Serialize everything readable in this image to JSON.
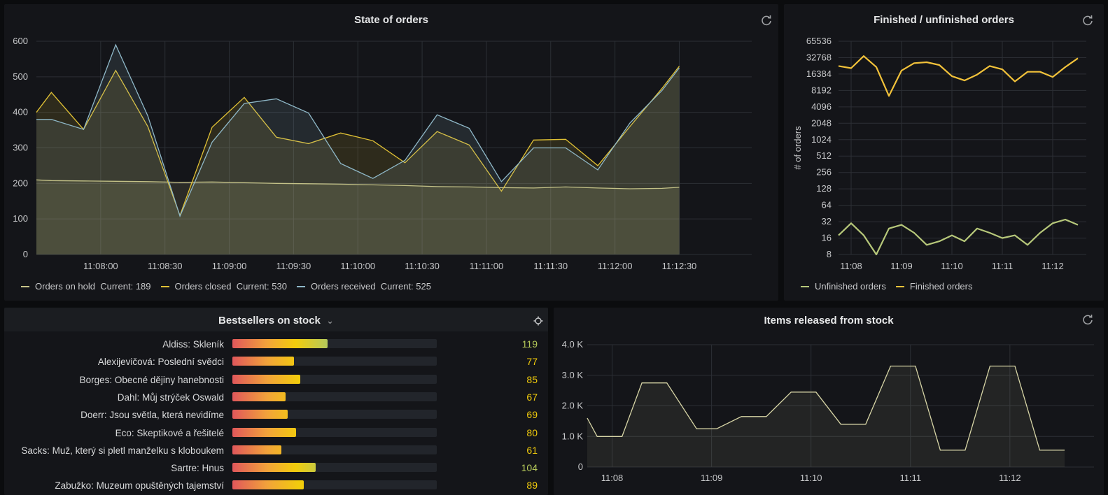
{
  "colors": {
    "on_hold": "#c9c58a",
    "closed": "#e0c135",
    "received": "#8fb8c8",
    "unfinished": "#b7c87a",
    "finished": "#f2c23a",
    "released": "#d7d5a6"
  },
  "state_panel": {
    "title": "State of orders",
    "refresh_icon": "refresh-icon",
    "legend": [
      {
        "name": "Orders on hold",
        "current_label": "Current:",
        "current": "189"
      },
      {
        "name": "Orders closed",
        "current_label": "Current:",
        "current": "530"
      },
      {
        "name": "Orders received",
        "current_label": "Current:",
        "current": "525"
      }
    ]
  },
  "finished_panel": {
    "title": "Finished / unfinished orders",
    "refresh_icon": "refresh-icon",
    "legend": [
      {
        "name": "Unfinished orders"
      },
      {
        "name": "Finished orders"
      }
    ]
  },
  "bestsellers_panel": {
    "title": "Bestsellers on stock",
    "title_caret": "⌄",
    "settings_icon": "target-icon",
    "items": [
      {
        "label": "Aldiss: Skleník",
        "value": 119
      },
      {
        "label": "Alexijevičová: Poslední svědci",
        "value": 77
      },
      {
        "label": "Borges: Obecné dějiny hanebnosti",
        "value": 85
      },
      {
        "label": "Dahl: Můj strýček Oswald",
        "value": 67
      },
      {
        "label": "Doerr: Jsou světla, která nevidíme",
        "value": 69
      },
      {
        "label": "Eco: Skeptikové a řešitelé",
        "value": 80
      },
      {
        "label": "Sacks: Muž, který si pletl manželku s kloboukem",
        "value": 61
      },
      {
        "label": "Sartre: Hnus",
        "value": 104
      },
      {
        "label": "Zabužko: Muzeum opuštěných tajemství",
        "value": 89
      }
    ],
    "bar_max": 256
  },
  "released_panel": {
    "title": "Items released from stock",
    "refresh_icon": "refresh-icon"
  },
  "chart_data": [
    {
      "id": "state",
      "type": "area",
      "title": "State of orders",
      "xlabel": "",
      "ylabel": "",
      "ylim": [
        0,
        600
      ],
      "yticks": [
        "0",
        "100",
        "200",
        "300",
        "400",
        "500",
        "600"
      ],
      "xlim": [
        0,
        325
      ],
      "xticks": [
        {
          "t": 30,
          "label": "11:08:00"
        },
        {
          "t": 60,
          "label": "11:08:30"
        },
        {
          "t": 90,
          "label": "11:09:00"
        },
        {
          "t": 120,
          "label": "11:09:30"
        },
        {
          "t": 150,
          "label": "11:10:00"
        },
        {
          "t": 180,
          "label": "11:10:30"
        },
        {
          "t": 210,
          "label": "11:11:00"
        },
        {
          "t": 240,
          "label": "11:11:30"
        },
        {
          "t": 270,
          "label": "11:12:00"
        },
        {
          "t": 300,
          "label": "11:12:30"
        }
      ],
      "x": [
        0,
        7,
        22,
        37,
        52,
        67,
        82,
        97,
        112,
        127,
        142,
        157,
        172,
        187,
        202,
        217,
        232,
        247,
        262,
        277,
        292,
        300
      ],
      "series": [
        {
          "name": "Orders on hold",
          "key": "on_hold",
          "values": [
            210,
            208,
            207,
            206,
            205,
            203,
            204,
            202,
            200,
            199,
            198,
            196,
            194,
            191,
            190,
            188,
            187,
            190,
            187,
            185,
            186,
            189
          ]
        },
        {
          "name": "Orders closed",
          "key": "closed",
          "values": [
            400,
            456,
            352,
            518,
            360,
            110,
            358,
            442,
            330,
            312,
            342,
            320,
            258,
            346,
            308,
            178,
            322,
            324,
            250,
            360,
            468,
            530
          ]
        },
        {
          "name": "Orders received",
          "key": "received",
          "values": [
            380,
            380,
            352,
            590,
            390,
            108,
            316,
            425,
            438,
            398,
            256,
            214,
            265,
            393,
            355,
            205,
            300,
            300,
            238,
            370,
            462,
            525
          ]
        }
      ]
    },
    {
      "id": "finished",
      "type": "line",
      "title": "Finished / unfinished orders",
      "ylabel": "# of orders",
      "yscale": "log2",
      "ylim": [
        8,
        65536
      ],
      "yticks": [
        "8",
        "16",
        "32",
        "64",
        "128",
        "256",
        "512",
        "1024",
        "2048",
        "4096",
        "8192",
        "16384",
        "32768",
        "65536"
      ],
      "xticks": [
        {
          "t": 1,
          "label": "11:08"
        },
        {
          "t": 5,
          "label": "11:09"
        },
        {
          "t": 9,
          "label": "11:10"
        },
        {
          "t": 13,
          "label": "11:11"
        },
        {
          "t": 17,
          "label": "11:12"
        }
      ],
      "x": [
        0,
        1,
        2,
        3,
        4,
        5,
        6,
        7,
        8,
        9,
        10,
        11,
        12,
        13,
        14,
        15,
        16,
        17,
        18,
        19
      ],
      "series": [
        {
          "name": "Unfinished orders",
          "key": "unfinished",
          "values": [
            18,
            30,
            18,
            8,
            24,
            28,
            20,
            12,
            14,
            18,
            14,
            24,
            20,
            16,
            18,
            12,
            20,
            30,
            35,
            28
          ]
        },
        {
          "name": "Finished orders",
          "key": "finished",
          "values": [
            23000,
            21000,
            35000,
            22000,
            6500,
            19000,
            26000,
            27000,
            24000,
            15000,
            12500,
            16000,
            23000,
            20000,
            12000,
            18000,
            18000,
            14500,
            22000,
            32000
          ]
        }
      ]
    },
    {
      "id": "released",
      "type": "area",
      "title": "Items released from stock",
      "ylim": [
        0,
        4000
      ],
      "yticks": [
        {
          "v": 0,
          "label": "0"
        },
        {
          "v": 1000,
          "label": "1.0 K"
        },
        {
          "v": 2000,
          "label": "2.0 K"
        },
        {
          "v": 3000,
          "label": "3.0 K"
        },
        {
          "v": 4000,
          "label": "4.0 K"
        }
      ],
      "xticks": [
        {
          "t": 1,
          "label": "11:08"
        },
        {
          "t": 5,
          "label": "11:09"
        },
        {
          "t": 9,
          "label": "11:10"
        },
        {
          "t": 13,
          "label": "11:11"
        },
        {
          "t": 17,
          "label": "11:12"
        }
      ],
      "x": [
        0,
        0.4,
        1.4,
        2.2,
        3.2,
        4.4,
        5.2,
        6.2,
        7.2,
        8.2,
        9.2,
        10.2,
        11.2,
        12.2,
        13.2,
        14.2,
        15.2,
        16.2,
        17.2,
        18.2,
        19.2
      ],
      "series": [
        {
          "name": "Items released",
          "key": "released",
          "values": [
            1600,
            1000,
            1000,
            2750,
            2750,
            1250,
            1250,
            1650,
            1650,
            2450,
            2450,
            1400,
            1400,
            3300,
            3300,
            550,
            550,
            3300,
            3300,
            550,
            550
          ]
        }
      ]
    }
  ]
}
